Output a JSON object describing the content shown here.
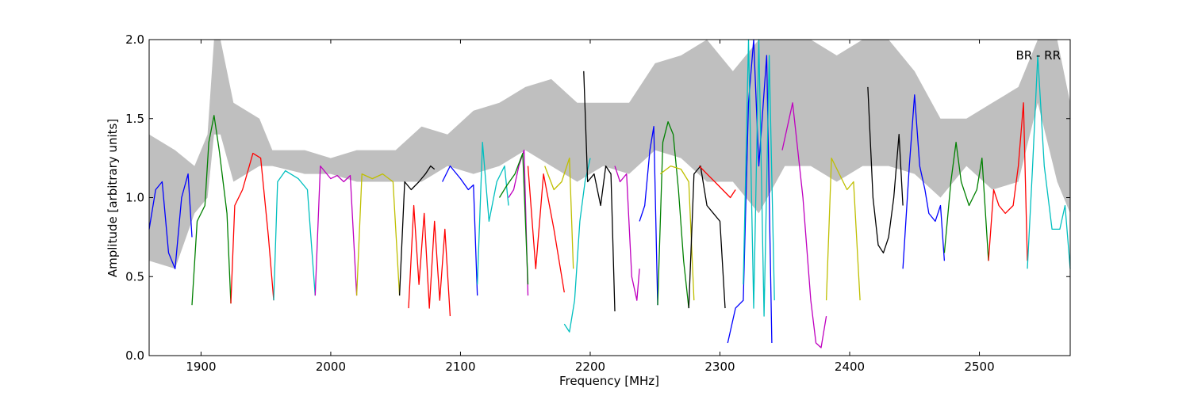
{
  "chart_data": {
    "type": "line",
    "xlabel": "Frequency [MHz]",
    "ylabel": "Amplitude [arbitrary units]",
    "annotation": "BR - RR",
    "xlim": [
      1860,
      2570
    ],
    "ylim": [
      0.0,
      2.0
    ],
    "x_ticks": [
      {
        "value": 1900,
        "label": "1900"
      },
      {
        "value": 2000,
        "label": "2000"
      },
      {
        "value": 2100,
        "label": "2100"
      },
      {
        "value": 2200,
        "label": "2200"
      },
      {
        "value": 2300,
        "label": "2300"
      },
      {
        "value": 2400,
        "label": "2400"
      },
      {
        "value": 2500,
        "label": "2500"
      }
    ],
    "y_ticks": [
      {
        "value": 0.0,
        "label": "0.0"
      },
      {
        "value": 0.5,
        "label": "0.5"
      },
      {
        "value": 1.0,
        "label": "1.0"
      },
      {
        "value": 1.5,
        "label": "1.5"
      },
      {
        "value": 2.0,
        "label": "2.0"
      }
    ],
    "grid": false,
    "envelope": {
      "color": "#bfbfbf",
      "x": [
        1860,
        1880,
        1895,
        1905,
        1910,
        1915,
        1925,
        1945,
        1955,
        1980,
        2000,
        2020,
        2050,
        2070,
        2090,
        2110,
        2130,
        2150,
        2170,
        2190,
        2210,
        2230,
        2250,
        2270,
        2290,
        2310,
        2330,
        2350,
        2370,
        2390,
        2410,
        2430,
        2450,
        2470,
        2490,
        2510,
        2530,
        2545,
        2560,
        2570
      ],
      "lo": [
        0.6,
        0.55,
        0.9,
        1.0,
        1.4,
        1.4,
        1.1,
        1.2,
        1.2,
        1.15,
        1.15,
        1.1,
        1.1,
        1.1,
        1.2,
        1.15,
        1.2,
        1.3,
        1.2,
        1.1,
        1.2,
        1.15,
        1.3,
        1.25,
        1.1,
        1.1,
        0.9,
        1.2,
        1.2,
        1.1,
        1.2,
        1.2,
        1.15,
        1.0,
        1.2,
        1.05,
        1.1,
        1.6,
        1.1,
        0.9
      ],
      "hi": [
        1.4,
        1.3,
        1.2,
        1.4,
        2.0,
        2.0,
        1.6,
        1.5,
        1.3,
        1.3,
        1.25,
        1.3,
        1.3,
        1.45,
        1.4,
        1.55,
        1.6,
        1.7,
        1.75,
        1.6,
        1.6,
        1.6,
        1.85,
        1.9,
        2.0,
        1.8,
        2.0,
        2.0,
        2.0,
        1.9,
        2.0,
        2.0,
        1.8,
        1.5,
        1.5,
        1.6,
        1.7,
        2.0,
        2.0,
        1.6
      ]
    },
    "series": [
      {
        "color": "#0000ff",
        "x": [
          1860,
          1865,
          1870,
          1875,
          1880,
          1885,
          1890,
          1893
        ],
        "y": [
          0.8,
          1.05,
          1.1,
          0.65,
          0.55,
          1.0,
          1.15,
          0.75
        ]
      },
      {
        "color": "#008000",
        "x": [
          1893,
          1897,
          1903,
          1906,
          1910,
          1914,
          1917,
          1920,
          1923
        ],
        "y": [
          0.32,
          0.85,
          0.95,
          1.35,
          1.52,
          1.3,
          1.1,
          0.9,
          0.33
        ]
      },
      {
        "color": "#ff0000",
        "x": [
          1923,
          1926,
          1932,
          1940,
          1946,
          1952,
          1956
        ],
        "y": [
          0.33,
          0.95,
          1.05,
          1.28,
          1.25,
          0.75,
          0.35
        ]
      },
      {
        "color": "#00bfbf",
        "x": [
          1956,
          1959,
          1965,
          1975,
          1982,
          1988
        ],
        "y": [
          0.35,
          1.1,
          1.17,
          1.12,
          1.05,
          0.38
        ]
      },
      {
        "color": "#bf00bf",
        "x": [
          1988,
          1992,
          2000,
          2005,
          2010,
          2015,
          2020
        ],
        "y": [
          0.38,
          1.2,
          1.12,
          1.14,
          1.1,
          1.14,
          0.38
        ]
      },
      {
        "color": "#bfbf00",
        "x": [
          2020,
          2024,
          2032,
          2040,
          2048,
          2053
        ],
        "y": [
          0.38,
          1.15,
          1.12,
          1.15,
          1.1,
          0.38
        ]
      },
      {
        "color": "#000000",
        "x": [
          2053,
          2057,
          2062,
          2068,
          2073,
          2077,
          2080
        ],
        "y": [
          0.38,
          1.1,
          1.05,
          1.1,
          1.15,
          1.2,
          1.18
        ]
      },
      {
        "color": "#ff0000",
        "x": [
          2060,
          2064,
          2068,
          2072,
          2076,
          2080,
          2084,
          2088,
          2092
        ],
        "y": [
          0.3,
          0.95,
          0.45,
          0.9,
          0.3,
          0.85,
          0.35,
          0.8,
          0.25
        ]
      },
      {
        "color": "#0000ff",
        "x": [
          2086,
          2092,
          2100,
          2106,
          2110,
          2113
        ],
        "y": [
          1.1,
          1.2,
          1.12,
          1.05,
          1.08,
          0.38
        ]
      },
      {
        "color": "#00bfbf",
        "x": [
          2113,
          2117,
          2122,
          2128,
          2134,
          2137
        ],
        "y": [
          0.45,
          1.35,
          0.85,
          1.1,
          1.2,
          0.95
        ]
      },
      {
        "color": "#bf00bf",
        "x": [
          2137,
          2141,
          2145,
          2149,
          2152
        ],
        "y": [
          1.0,
          1.05,
          1.2,
          1.3,
          0.38
        ]
      },
      {
        "color": "#008000",
        "x": [
          2130,
          2136,
          2142,
          2148,
          2152
        ],
        "y": [
          1.0,
          1.08,
          1.15,
          1.28,
          0.45
        ]
      },
      {
        "color": "#ff0000",
        "x": [
          2152,
          2158,
          2164,
          2172,
          2180
        ],
        "y": [
          1.2,
          0.55,
          1.15,
          0.8,
          0.4
        ]
      },
      {
        "color": "#bfbf00",
        "x": [
          2165,
          2172,
          2178,
          2184,
          2187
        ],
        "y": [
          1.2,
          1.05,
          1.1,
          1.25,
          0.55
        ]
      },
      {
        "color": "#00bfbf",
        "x": [
          2180,
          2184,
          2188,
          2192,
          2196,
          2200
        ],
        "y": [
          0.2,
          0.15,
          0.35,
          0.85,
          1.1,
          1.25
        ]
      },
      {
        "color": "#000000",
        "x": [
          2195,
          2198,
          2203,
          2208,
          2212,
          2216,
          2219
        ],
        "y": [
          1.8,
          1.1,
          1.15,
          0.95,
          1.2,
          1.15,
          0.28
        ]
      },
      {
        "color": "#bf00bf",
        "x": [
          2219,
          2223,
          2228,
          2232,
          2236,
          2238
        ],
        "y": [
          1.2,
          1.1,
          1.15,
          0.5,
          0.35,
          0.55
        ]
      },
      {
        "color": "#0000ff",
        "x": [
          2238,
          2242,
          2246,
          2249,
          2252
        ],
        "y": [
          0.85,
          0.95,
          1.3,
          1.45,
          0.32
        ]
      },
      {
        "color": "#008000",
        "x": [
          2252,
          2256,
          2260,
          2264,
          2268,
          2272,
          2276
        ],
        "y": [
          0.32,
          1.35,
          1.48,
          1.4,
          1.05,
          0.6,
          0.3
        ]
      },
      {
        "color": "#bfbf00",
        "x": [
          2254,
          2262,
          2270,
          2276,
          2280
        ],
        "y": [
          1.15,
          1.2,
          1.18,
          1.1,
          0.35
        ]
      },
      {
        "color": "#000000",
        "x": [
          2276,
          2280,
          2285,
          2290,
          2295,
          2300,
          2304
        ],
        "y": [
          0.3,
          1.15,
          1.2,
          0.95,
          0.9,
          0.85,
          0.3
        ]
      },
      {
        "color": "#ff0000",
        "x": [
          2284,
          2290,
          2296,
          2302,
          2308,
          2312
        ],
        "y": [
          1.2,
          1.15,
          1.1,
          1.05,
          1.0,
          1.05
        ]
      },
      {
        "color": "#0000ff",
        "x": [
          2306,
          2312,
          2318,
          2322,
          2326,
          2330,
          2336,
          2340
        ],
        "y": [
          0.08,
          0.3,
          0.35,
          1.6,
          2.0,
          1.2,
          1.9,
          0.08
        ]
      },
      {
        "color": "#00bfbf",
        "x": [
          2318,
          2322,
          2326,
          2330,
          2334,
          2338,
          2342
        ],
        "y": [
          0.45,
          2.0,
          0.3,
          2.0,
          0.25,
          1.9,
          0.35
        ]
      },
      {
        "color": "#bf00bf",
        "x": [
          2348,
          2356,
          2364,
          2370,
          2374,
          2378,
          2382
        ],
        "y": [
          1.3,
          1.6,
          1.0,
          0.35,
          0.08,
          0.05,
          0.25
        ]
      },
      {
        "color": "#bfbf00",
        "x": [
          2382,
          2386,
          2392,
          2398,
          2403,
          2408
        ],
        "y": [
          0.35,
          1.25,
          1.15,
          1.05,
          1.1,
          0.35
        ]
      },
      {
        "color": "#000000",
        "x": [
          2414,
          2418,
          2422,
          2426,
          2430,
          2434,
          2438,
          2441
        ],
        "y": [
          1.7,
          1.0,
          0.7,
          0.65,
          0.75,
          1.0,
          1.4,
          0.95
        ]
      },
      {
        "color": "#0000ff",
        "x": [
          2441,
          2446,
          2450,
          2454,
          2458,
          2461,
          2466,
          2470,
          2473
        ],
        "y": [
          0.55,
          1.2,
          1.65,
          1.2,
          1.05,
          0.9,
          0.85,
          0.95,
          0.6
        ]
      },
      {
        "color": "#008000",
        "x": [
          2473,
          2478,
          2482,
          2486,
          2492,
          2498,
          2502,
          2507
        ],
        "y": [
          0.65,
          1.1,
          1.35,
          1.1,
          0.95,
          1.05,
          1.25,
          0.6
        ]
      },
      {
        "color": "#ff0000",
        "x": [
          2507,
          2511,
          2515,
          2520,
          2526,
          2530,
          2534,
          2537
        ],
        "y": [
          0.6,
          1.05,
          0.95,
          0.9,
          0.95,
          1.2,
          1.6,
          0.6
        ]
      },
      {
        "color": "#00bfbf",
        "x": [
          2537,
          2541,
          2545,
          2550,
          2556,
          2562,
          2566,
          2570
        ],
        "y": [
          0.55,
          1.2,
          1.9,
          1.2,
          0.8,
          0.8,
          0.95,
          0.55
        ]
      }
    ]
  }
}
